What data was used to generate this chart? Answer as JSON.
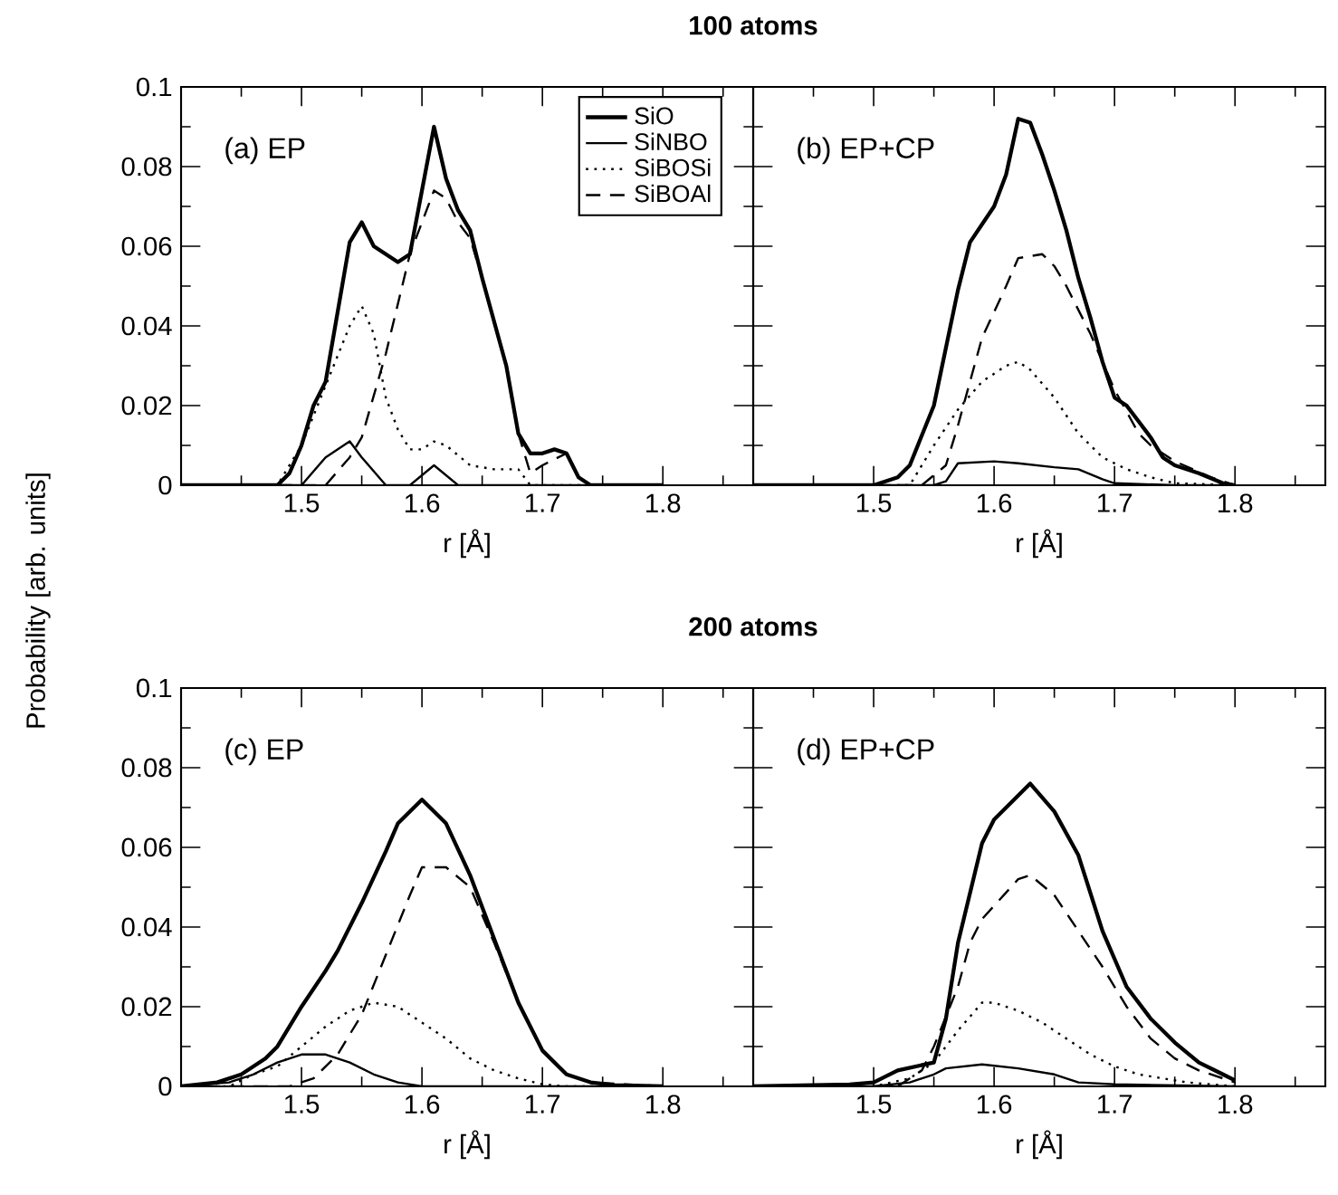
{
  "chart_data": [
    {
      "type": "line",
      "title": "100 atoms",
      "xlabel": "r [Å]",
      "ylabel": "Probability [arb. units]",
      "annotations": [
        "(a) EP"
      ],
      "xlim": [
        1.4,
        1.875
      ],
      "ylim": [
        0,
        0.1
      ],
      "xticks": [
        1.5,
        1.6,
        1.7,
        1.8
      ],
      "yticks": [
        0,
        0.02,
        0.04,
        0.06,
        0.08,
        0.1
      ],
      "legend": "top right",
      "grid": false,
      "marker": "none",
      "series": [
        {
          "name": "SiO",
          "color": "#000000",
          "line_style": "solid",
          "x": [
            1.4,
            1.48,
            1.49,
            1.5,
            1.51,
            1.52,
            1.54,
            1.55,
            1.56,
            1.58,
            1.59,
            1.61,
            1.62,
            1.63,
            1.64,
            1.65,
            1.67,
            1.68,
            1.69,
            1.7,
            1.71,
            1.72,
            1.73,
            1.74,
            1.8
          ],
          "values": [
            0,
            0,
            0.003,
            0.01,
            0.02,
            0.026,
            0.061,
            0.066,
            0.06,
            0.056,
            0.058,
            0.09,
            0.077,
            0.069,
            0.064,
            0.052,
            0.03,
            0.013,
            0.008,
            0.008,
            0.009,
            0.008,
            0.002,
            0,
            0
          ]
        },
        {
          "name": "SiNBO",
          "color": "#000000",
          "line_style": "solid",
          "x": [
            1.4,
            1.5,
            1.52,
            1.54,
            1.55,
            1.57,
            1.59,
            1.61,
            1.63,
            1.8
          ],
          "values": [
            0,
            0,
            0.007,
            0.011,
            0.007,
            0,
            0,
            0.005,
            0,
            0
          ]
        },
        {
          "name": "SiBOSi",
          "color": "#000000",
          "line_style": "dotted",
          "x": [
            1.4,
            1.48,
            1.5,
            1.52,
            1.54,
            1.55,
            1.56,
            1.57,
            1.58,
            1.59,
            1.6,
            1.61,
            1.62,
            1.64,
            1.66,
            1.68,
            1.69,
            1.8
          ],
          "values": [
            0,
            0,
            0.01,
            0.025,
            0.04,
            0.045,
            0.038,
            0.022,
            0.014,
            0.009,
            0.009,
            0.011,
            0.01,
            0.005,
            0.004,
            0.004,
            0,
            0
          ]
        },
        {
          "name": "SiBOAl",
          "color": "#000000",
          "line_style": "dashed",
          "x": [
            1.4,
            1.52,
            1.54,
            1.55,
            1.57,
            1.59,
            1.61,
            1.62,
            1.63,
            1.64,
            1.65,
            1.67,
            1.68,
            1.69,
            1.7,
            1.72,
            1.73,
            1.74,
            1.8
          ],
          "values": [
            0,
            0,
            0.007,
            0.012,
            0.033,
            0.058,
            0.074,
            0.072,
            0.066,
            0.062,
            0.052,
            0.03,
            0.013,
            0.003,
            0.005,
            0.008,
            0.002,
            0,
            0
          ]
        }
      ]
    },
    {
      "type": "line",
      "xlabel": "r [Å]",
      "annotations": [
        "(b) EP+CP"
      ],
      "xlim": [
        1.4,
        1.875
      ],
      "ylim": [
        0,
        0.1
      ],
      "xticks": [
        1.5,
        1.6,
        1.7,
        1.8
      ],
      "yticks": [
        0,
        0.02,
        0.04,
        0.06,
        0.08,
        0.1
      ],
      "tick_labels": "x",
      "grid": false,
      "marker": "none",
      "series": [
        {
          "color": "#000000",
          "line_style": "solid",
          "x": [
            1.4,
            1.5,
            1.52,
            1.53,
            1.55,
            1.57,
            1.58,
            1.6,
            1.61,
            1.62,
            1.63,
            1.64,
            1.65,
            1.66,
            1.67,
            1.68,
            1.69,
            1.7,
            1.71,
            1.72,
            1.73,
            1.74,
            1.75,
            1.77,
            1.79,
            1.8
          ],
          "values": [
            0,
            0,
            0.002,
            0.005,
            0.02,
            0.049,
            0.061,
            0.07,
            0.078,
            0.092,
            0.091,
            0.083,
            0.074,
            0.064,
            0.052,
            0.042,
            0.031,
            0.022,
            0.02,
            0.016,
            0.012,
            0.007,
            0.005,
            0.003,
            0.0005,
            0
          ]
        },
        {
          "color": "#000000",
          "line_style": "solid",
          "x": [
            1.4,
            1.55,
            1.56,
            1.57,
            1.6,
            1.62,
            1.65,
            1.67,
            1.69,
            1.7,
            1.75,
            1.8
          ],
          "values": [
            0,
            0,
            0.001,
            0.0055,
            0.006,
            0.0055,
            0.0045,
            0.004,
            0.0015,
            0.0005,
            0,
            0
          ]
        },
        {
          "color": "#000000",
          "line_style": "dotted",
          "x": [
            1.4,
            1.53,
            1.55,
            1.57,
            1.59,
            1.61,
            1.62,
            1.63,
            1.65,
            1.67,
            1.69,
            1.71,
            1.73,
            1.75,
            1.8
          ],
          "values": [
            0,
            0,
            0.01,
            0.019,
            0.026,
            0.03,
            0.031,
            0.029,
            0.022,
            0.013,
            0.007,
            0.004,
            0.002,
            0.0005,
            0
          ]
        },
        {
          "color": "#000000",
          "line_style": "dashed",
          "x": [
            1.4,
            1.54,
            1.56,
            1.57,
            1.59,
            1.61,
            1.62,
            1.64,
            1.65,
            1.66,
            1.68,
            1.7,
            1.72,
            1.73,
            1.75,
            1.78,
            1.8
          ],
          "values": [
            0,
            0,
            0.005,
            0.015,
            0.037,
            0.05,
            0.057,
            0.058,
            0.055,
            0.05,
            0.038,
            0.024,
            0.013,
            0.01,
            0.006,
            0.002,
            0
          ]
        }
      ]
    },
    {
      "type": "line",
      "title": "200 atoms",
      "xlabel": "r [Å]",
      "annotations": [
        "(c) EP"
      ],
      "xlim": [
        1.4,
        1.875
      ],
      "ylim": [
        0,
        0.1
      ],
      "xticks": [
        1.5,
        1.6,
        1.7,
        1.8
      ],
      "yticks": [
        0,
        0.02,
        0.04,
        0.06,
        0.08,
        0.1
      ],
      "grid": false,
      "marker": "none",
      "series": [
        {
          "color": "#000000",
          "line_style": "solid",
          "x": [
            1.4,
            1.43,
            1.45,
            1.47,
            1.48,
            1.5,
            1.52,
            1.53,
            1.55,
            1.57,
            1.58,
            1.6,
            1.62,
            1.64,
            1.66,
            1.68,
            1.7,
            1.72,
            1.74,
            1.76,
            1.8
          ],
          "values": [
            0,
            0.001,
            0.003,
            0.007,
            0.01,
            0.02,
            0.029,
            0.034,
            0.046,
            0.059,
            0.066,
            0.072,
            0.066,
            0.053,
            0.037,
            0.021,
            0.009,
            0.003,
            0.001,
            0.0003,
            0
          ]
        },
        {
          "color": "#000000",
          "line_style": "solid",
          "x": [
            1.4,
            1.44,
            1.46,
            1.48,
            1.5,
            1.52,
            1.54,
            1.56,
            1.58,
            1.6,
            1.8
          ],
          "values": [
            0,
            0.001,
            0.003,
            0.006,
            0.008,
            0.008,
            0.006,
            0.003,
            0.001,
            0,
            0
          ]
        },
        {
          "color": "#000000",
          "line_style": "dotted",
          "x": [
            1.4,
            1.44,
            1.46,
            1.48,
            1.5,
            1.52,
            1.54,
            1.56,
            1.58,
            1.6,
            1.62,
            1.64,
            1.66,
            1.68,
            1.7,
            1.72,
            1.8
          ],
          "values": [
            0,
            0,
            0.003,
            0.005,
            0.01,
            0.015,
            0.019,
            0.021,
            0.02,
            0.016,
            0.012,
            0.007,
            0.004,
            0.002,
            0.0005,
            0,
            0
          ]
        },
        {
          "color": "#000000",
          "line_style": "dashed",
          "x": [
            1.4,
            1.49,
            1.51,
            1.53,
            1.55,
            1.57,
            1.59,
            1.6,
            1.62,
            1.64,
            1.66,
            1.68,
            1.7,
            1.72,
            1.74,
            1.8
          ],
          "values": [
            0,
            0,
            0.002,
            0.008,
            0.018,
            0.033,
            0.048,
            0.055,
            0.055,
            0.05,
            0.036,
            0.021,
            0.009,
            0.003,
            0.001,
            0
          ]
        }
      ]
    },
    {
      "type": "line",
      "xlabel": "r [Å]",
      "annotations": [
        "(d) EP+CP"
      ],
      "xlim": [
        1.4,
        1.875
      ],
      "ylim": [
        0,
        0.1
      ],
      "xticks": [
        1.5,
        1.6,
        1.7,
        1.8
      ],
      "yticks": [
        0,
        0.02,
        0.04,
        0.06,
        0.08,
        0.1
      ],
      "tick_labels": "x",
      "grid": false,
      "marker": "none",
      "series": [
        {
          "color": "#000000",
          "line_style": "solid",
          "x": [
            1.4,
            1.48,
            1.5,
            1.52,
            1.55,
            1.56,
            1.57,
            1.59,
            1.6,
            1.61,
            1.62,
            1.63,
            1.65,
            1.67,
            1.69,
            1.71,
            1.73,
            1.75,
            1.77,
            1.79,
            1.8
          ],
          "values": [
            0,
            0.0005,
            0.001,
            0.004,
            0.006,
            0.017,
            0.036,
            0.061,
            0.067,
            0.07,
            0.073,
            0.076,
            0.069,
            0.058,
            0.039,
            0.025,
            0.017,
            0.011,
            0.006,
            0.003,
            0.0015
          ]
        },
        {
          "color": "#000000",
          "line_style": "solid",
          "x": [
            1.4,
            1.5,
            1.53,
            1.55,
            1.56,
            1.59,
            1.62,
            1.65,
            1.67,
            1.7,
            1.8
          ],
          "values": [
            0,
            0,
            0.001,
            0.003,
            0.0045,
            0.0055,
            0.0045,
            0.003,
            0.001,
            0.0005,
            0
          ]
        },
        {
          "color": "#000000",
          "line_style": "dotted",
          "x": [
            1.4,
            1.5,
            1.53,
            1.55,
            1.57,
            1.59,
            1.6,
            1.62,
            1.64,
            1.66,
            1.68,
            1.7,
            1.72,
            1.74,
            1.76,
            1.8
          ],
          "values": [
            0,
            0,
            0.002,
            0.006,
            0.014,
            0.021,
            0.021,
            0.019,
            0.016,
            0.012,
            0.008,
            0.005,
            0.003,
            0.002,
            0.001,
            0
          ]
        },
        {
          "color": "#000000",
          "line_style": "dashed",
          "x": [
            1.4,
            1.52,
            1.54,
            1.55,
            1.57,
            1.58,
            1.59,
            1.62,
            1.63,
            1.65,
            1.67,
            1.69,
            1.71,
            1.73,
            1.75,
            1.77,
            1.79,
            1.8
          ],
          "values": [
            0,
            0,
            0.004,
            0.01,
            0.025,
            0.036,
            0.042,
            0.052,
            0.053,
            0.048,
            0.039,
            0.03,
            0.02,
            0.012,
            0.007,
            0.004,
            0.002,
            0.001
          ]
        }
      ]
    }
  ]
}
